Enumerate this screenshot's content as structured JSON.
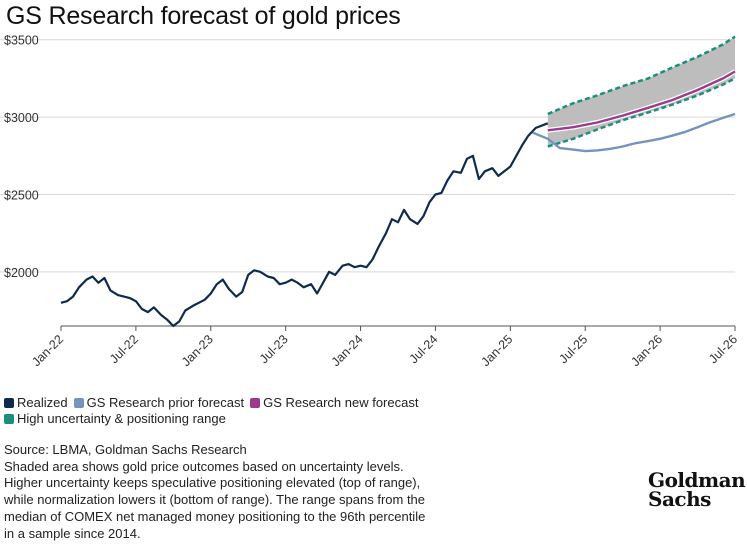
{
  "title": "GS Research forecast of gold prices",
  "chart_data": {
    "type": "line",
    "title": "GS Research forecast of gold prices",
    "xlabel": "",
    "ylabel": "",
    "x_range": [
      "2022-01",
      "2026-07"
    ],
    "ylim": [
      1650,
      3550
    ],
    "y_ticks": [
      2000,
      2500,
      3000,
      3500
    ],
    "y_tick_labels": [
      "$2000",
      "$2500",
      "$3000",
      "$3500"
    ],
    "x_ticks": [
      "2022-01",
      "2022-07",
      "2023-01",
      "2023-07",
      "2024-01",
      "2024-07",
      "2025-01",
      "2025-07",
      "2026-01",
      "2026-07"
    ],
    "x_tick_labels": [
      "Jan-22",
      "Jul-22",
      "Jan-23",
      "Jul-23",
      "Jan-24",
      "Jul-24",
      "Jan-25",
      "Jul-25",
      "Jan-26",
      "Jul-26"
    ],
    "grid": "horizontal",
    "legend_position": "bottom",
    "series": [
      {
        "name": "Realized",
        "color": "#0f2a4f",
        "x": [
          2022.0,
          2022.04,
          2022.08,
          2022.12,
          2022.17,
          2022.21,
          2022.25,
          2022.29,
          2022.33,
          2022.38,
          2022.42,
          2022.46,
          2022.5,
          2022.54,
          2022.58,
          2022.62,
          2022.67,
          2022.71,
          2022.75,
          2022.79,
          2022.83,
          2022.88,
          2022.92,
          2022.96,
          2023.0,
          2023.04,
          2023.08,
          2023.12,
          2023.17,
          2023.21,
          2023.25,
          2023.29,
          2023.33,
          2023.38,
          2023.42,
          2023.46,
          2023.5,
          2023.54,
          2023.58,
          2023.62,
          2023.67,
          2023.71,
          2023.75,
          2023.79,
          2023.83,
          2023.88,
          2023.92,
          2023.96,
          2024.0,
          2024.04,
          2024.08,
          2024.12,
          2024.17,
          2024.21,
          2024.25,
          2024.29,
          2024.33,
          2024.38,
          2024.42,
          2024.46,
          2024.5,
          2024.54,
          2024.58,
          2024.62,
          2024.67,
          2024.71,
          2024.75,
          2024.79,
          2024.83,
          2024.88,
          2024.92,
          2024.96,
          2025.0,
          2025.04,
          2025.08,
          2025.12,
          2025.17,
          2025.25
        ],
        "values": [
          1800,
          1810,
          1840,
          1900,
          1950,
          1970,
          1930,
          1960,
          1880,
          1850,
          1840,
          1830,
          1810,
          1760,
          1740,
          1770,
          1720,
          1690,
          1650,
          1680,
          1750,
          1780,
          1800,
          1820,
          1860,
          1920,
          1950,
          1890,
          1840,
          1870,
          1980,
          2010,
          2000,
          1970,
          1960,
          1920,
          1930,
          1950,
          1930,
          1900,
          1920,
          1860,
          1930,
          2000,
          1980,
          2040,
          2050,
          2030,
          2040,
          2030,
          2080,
          2160,
          2250,
          2340,
          2320,
          2400,
          2340,
          2310,
          2360,
          2450,
          2500,
          2510,
          2590,
          2650,
          2640,
          2730,
          2750,
          2600,
          2650,
          2670,
          2620,
          2650,
          2680,
          2750,
          2820,
          2880,
          2930,
          2960
        ]
      },
      {
        "name": "GS Research prior forecast",
        "color": "#7593bd",
        "x": [
          2025.15,
          2025.25,
          2025.33,
          2025.42,
          2025.5,
          2025.58,
          2025.67,
          2025.75,
          2025.83,
          2025.92,
          2026.0,
          2026.08,
          2026.17,
          2026.25,
          2026.33,
          2026.42,
          2026.5
        ],
        "values": [
          2900,
          2860,
          2800,
          2790,
          2780,
          2785,
          2795,
          2810,
          2830,
          2845,
          2860,
          2880,
          2905,
          2935,
          2965,
          2995,
          3020
        ]
      },
      {
        "name": "GS Research new forecast",
        "color": "#9c3b8e",
        "x": [
          2025.25,
          2025.42,
          2025.58,
          2025.75,
          2025.92,
          2026.08,
          2026.25,
          2026.42,
          2026.5
        ],
        "values": [
          2915,
          2935,
          2965,
          3010,
          3060,
          3110,
          3175,
          3250,
          3295
        ]
      },
      {
        "name": "High uncertainty & positioning range",
        "color": "#1b8f7c",
        "x": [
          2025.25,
          2025.42,
          2025.58,
          2025.75,
          2025.92,
          2026.08,
          2026.25,
          2026.42,
          2026.5
        ],
        "upper": [
          3020,
          3090,
          3140,
          3200,
          3250,
          3320,
          3390,
          3470,
          3520
        ],
        "lower": [
          2810,
          2860,
          2920,
          2980,
          3030,
          3080,
          3140,
          3210,
          3250
        ]
      }
    ]
  },
  "legend": {
    "items": [
      {
        "label": "Realized",
        "color": "#0f2a4f"
      },
      {
        "label": "GS Research prior forecast",
        "color": "#7593bd"
      },
      {
        "label": "GS Research new forecast",
        "color": "#9c3b8e"
      },
      {
        "label": "High uncertainty & positioning range",
        "color": "#1b8f7c"
      }
    ]
  },
  "footnote": {
    "source": "Source: LBMA, Goldman Sachs Research",
    "lines": [
      "Shaded area shows gold price outcomes based on uncertainty levels.",
      "Higher uncertainty keeps speculative positioning elevated (top of range),",
      "while normalization lowers it (bottom of range). The range spans from the",
      "median of COMEX net managed money positioning to the 96th percentile",
      "in a sample since 2014."
    ]
  },
  "brand": {
    "line1": "Goldman",
    "line2": "Sachs"
  }
}
